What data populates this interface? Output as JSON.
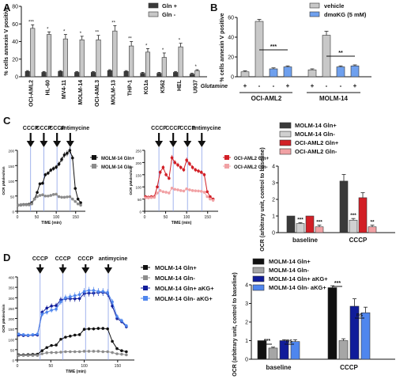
{
  "panels": [
    {
      "id": "A",
      "letter": "A"
    },
    {
      "id": "B",
      "letter": "B"
    },
    {
      "id": "C",
      "letter": "C"
    },
    {
      "id": "D",
      "letter": "D"
    }
  ],
  "colors": {
    "dark": "#3a3a3a",
    "light": "#c8c8c8",
    "black": "#111111",
    "gray": "#8c8c8c",
    "red": "#d21f26",
    "pink": "#f1a1a4",
    "navy": "#101c9a",
    "blue": "#4f86ee",
    "vline": "#8aa0e8"
  },
  "chart_data": [
    {
      "panel": "A",
      "type": "bar",
      "ylabel": "% cells annexin V positive",
      "ylim": [
        0,
        80
      ],
      "yticks": [
        0,
        20,
        40,
        60,
        80
      ],
      "categories": [
        "OCI-AML2",
        "HL-60",
        "MV4-11",
        "MOLM-14",
        "OCI-AML3",
        "MOLM-13",
        "THP-1",
        "KG1a",
        "K562",
        "HEL",
        "U937"
      ],
      "series": [
        {
          "name": "Gln +",
          "color": "#3a3a3a",
          "values": [
            6,
            5,
            6,
            5,
            5,
            7,
            6,
            4,
            4,
            5,
            3
          ],
          "errors": [
            1,
            1,
            1,
            1,
            1,
            1,
            1,
            1,
            1,
            1,
            1
          ]
        },
        {
          "name": "Gln -",
          "color": "#c8c8c8",
          "values": [
            55,
            48,
            43,
            42,
            42,
            52,
            35,
            28,
            22,
            34,
            7
          ],
          "errors": [
            4,
            3,
            5,
            4,
            5,
            6,
            5,
            4,
            5,
            4,
            1
          ]
        }
      ],
      "significance": [
        "***",
        "*",
        "*",
        "*",
        "**",
        "**",
        "**",
        "*",
        "*",
        "*",
        "*"
      ],
      "legend": [
        "Gln +",
        "Gln -"
      ]
    },
    {
      "panel": "B",
      "type": "bar",
      "ylabel": "% cells annexin V positive",
      "ylim": [
        0,
        60
      ],
      "yticks": [
        0,
        20,
        40,
        60
      ],
      "groups": [
        "OCI-AML2",
        "MOLM-14"
      ],
      "row_label": "Glutamine",
      "row_signs": [
        "+",
        "-",
        "-",
        "+",
        "+",
        "-",
        "-",
        "+"
      ],
      "series": [
        {
          "name": "vehicle",
          "color": "#c8c8c8",
          "values": [
            5,
            56,
            8,
            10,
            7,
            42,
            10,
            11
          ],
          "errors": [
            1,
            2,
            1,
            1,
            1,
            4,
            1,
            1
          ],
          "bars": [
            0,
            1,
            4,
            5
          ]
        },
        {
          "name": "dmαKG (5 mM)",
          "color": "#6fa0ee",
          "values": [
            5,
            56,
            8,
            10,
            7,
            42,
            10,
            11
          ],
          "errors": [
            1,
            2,
            1,
            1,
            1,
            4,
            1,
            1
          ],
          "bars": [
            2,
            3,
            6,
            7
          ]
        }
      ],
      "significance": [
        "***",
        "**"
      ],
      "legend": [
        "vehicle",
        "dmαKG (5 mM)"
      ]
    },
    {
      "panel": "C-left",
      "type": "line",
      "xlabel": "TIME (min)",
      "ylabel": "OCR pMoles/min",
      "xlim": [
        0,
        175
      ],
      "xticks": [
        0,
        50,
        100,
        150
      ],
      "ylim": [
        0,
        200
      ],
      "yticks": [
        0,
        50,
        100,
        150,
        200
      ],
      "injections": [
        "CCCP",
        "CCCP",
        "CCCP",
        "antimycine"
      ],
      "injection_times": [
        34,
        68,
        102,
        136
      ],
      "x": [
        2,
        9,
        16,
        23,
        30,
        37,
        44,
        51,
        58,
        65,
        72,
        79,
        86,
        93,
        100,
        107,
        114,
        121,
        128,
        135,
        142,
        149,
        156,
        163
      ],
      "series": [
        {
          "name": "MOLM-14 Gln+",
          "color": "#111111",
          "values": [
            20,
            21,
            22,
            22,
            23,
            28,
            40,
            62,
            90,
            92,
            120,
            125,
            135,
            140,
            145,
            155,
            170,
            185,
            190,
            200,
            175,
            75,
            40,
            28
          ]
        },
        {
          "name": "MOLM-14 Gln-",
          "color": "#8c8c8c",
          "values": [
            20,
            22,
            21,
            21,
            21,
            24,
            40,
            48,
            52,
            54,
            50,
            50,
            52,
            55,
            56,
            48,
            46,
            46,
            47,
            48,
            40,
            32,
            24,
            20
          ]
        }
      ]
    },
    {
      "panel": "C-middle",
      "type": "line",
      "xlabel": "TIME (min)",
      "ylabel": "OCR pMoles/min",
      "xlim": [
        0,
        175
      ],
      "xticks": [
        0,
        50,
        100,
        150
      ],
      "ylim": [
        0,
        250
      ],
      "yticks": [
        0,
        50,
        100,
        150,
        200,
        250
      ],
      "injections": [
        "CCCP",
        "CCCP",
        "CCCP",
        "antimycine"
      ],
      "injection_times": [
        34,
        68,
        102,
        136
      ],
      "x": [
        2,
        9,
        16,
        23,
        30,
        37,
        44,
        51,
        58,
        65,
        72,
        79,
        86,
        93,
        100,
        107,
        114,
        121,
        128,
        135,
        142,
        149,
        156,
        163
      ],
      "series": [
        {
          "name": "OCI-AML2 Gln+",
          "color": "#d21f26",
          "values": [
            60,
            58,
            60,
            60,
            100,
            160,
            180,
            150,
            135,
            220,
            200,
            190,
            180,
            170,
            210,
            195,
            180,
            170,
            165,
            160,
            150,
            80,
            60,
            50
          ]
        },
        {
          "name": "OCI-AML2 Gln-",
          "color": "#f1a1a4",
          "values": [
            55,
            55,
            56,
            57,
            75,
            85,
            80,
            78,
            75,
            95,
            90,
            88,
            85,
            83,
            92,
            88,
            85,
            84,
            83,
            82,
            78,
            60,
            50,
            45
          ]
        }
      ]
    },
    {
      "panel": "C-right",
      "type": "bar",
      "ylabel": "OCR (arbitrary unit, control to baseline)",
      "ylim": [
        0,
        4
      ],
      "yticks": [
        0,
        1,
        2,
        3,
        4
      ],
      "categories": [
        "baseline",
        "CCCP"
      ],
      "series": [
        {
          "name": "MOLM-14 Gln+",
          "color": "#3a3a3a",
          "values": [
            1.0,
            3.1
          ],
          "errors": [
            0,
            0.4
          ]
        },
        {
          "name": "MOLM-14 Gln-",
          "color": "#d0d0d0",
          "values": [
            0.55,
            0.75
          ],
          "errors": [
            0.05,
            0.1
          ]
        },
        {
          "name": "OCI-AML2 Gln+",
          "color": "#d21f26",
          "values": [
            1.0,
            2.1
          ],
          "errors": [
            0,
            0.3
          ]
        },
        {
          "name": "OCI-AML2 Gln-",
          "color": "#f1a1a4",
          "values": [
            0.35,
            0.35
          ],
          "errors": [
            0.1,
            0.1
          ]
        }
      ],
      "significance": [
        "***",
        "***",
        "***",
        "**"
      ],
      "legend": [
        "MOLM-14 Gln+",
        "MOLM-14 Gln-",
        "OCI-AML2 Gln+",
        "OCI-AML2 Gln-"
      ]
    },
    {
      "panel": "D-left",
      "type": "line",
      "xlabel": "TIME (min)",
      "ylabel": "OCR pMoles/min",
      "xlim": [
        0,
        175
      ],
      "xticks": [
        0,
        50,
        100,
        150
      ],
      "ylim": [
        0,
        400
      ],
      "yticks": [
        0,
        50,
        100,
        150,
        200,
        250,
        300,
        350,
        400
      ],
      "injections": [
        "CCCP",
        "CCCP",
        "CCCP",
        "antimycine"
      ],
      "injection_times": [
        34,
        68,
        102,
        136
      ],
      "x": [
        2,
        9,
        16,
        23,
        30,
        37,
        44,
        51,
        58,
        65,
        72,
        79,
        86,
        93,
        100,
        107,
        114,
        121,
        128,
        135,
        142,
        149,
        156,
        163
      ],
      "series": [
        {
          "name": "MOLM-14 Gln+",
          "color": "#111111",
          "values": [
            25,
            25,
            26,
            27,
            28,
            45,
            60,
            70,
            72,
            100,
            110,
            115,
            120,
            122,
            148,
            150,
            150,
            152,
            152,
            150,
            90,
            55,
            45,
            40
          ]
        },
        {
          "name": "MOLM-14 Gln-",
          "color": "#8c8c8c",
          "values": [
            22,
            22,
            22,
            22,
            22,
            30,
            35,
            36,
            36,
            38,
            40,
            40,
            40,
            40,
            42,
            42,
            42,
            42,
            40,
            40,
            36,
            30,
            28,
            25
          ]
        },
        {
          "name": "MOLM-14 Gln+ aKG+",
          "color": "#101c9a",
          "values": [
            120,
            118,
            118,
            120,
            120,
            230,
            250,
            260,
            262,
            290,
            295,
            295,
            295,
            296,
            320,
            322,
            322,
            325,
            325,
            320,
            260,
            200,
            185,
            160
          ]
        },
        {
          "name": "MOLM-14 Gln- aKG+",
          "color": "#4f86ee",
          "values": [
            125,
            122,
            120,
            122,
            125,
            220,
            230,
            240,
            245,
            280,
            300,
            305,
            310,
            315,
            330,
            335,
            335,
            330,
            330,
            325,
            280,
            210,
            190,
            165
          ]
        }
      ]
    },
    {
      "panel": "D-right",
      "type": "bar",
      "ylabel": "OCR (arbitrary unit, control to baseline)",
      "ylim": [
        0,
        4
      ],
      "yticks": [
        0,
        1,
        2,
        3,
        4
      ],
      "categories": [
        "baseline",
        "CCCP"
      ],
      "series": [
        {
          "name": "MOLM-14 Gln+",
          "color": "#111111",
          "values": [
            1.0,
            3.85
          ],
          "errors": [
            0,
            0.1
          ]
        },
        {
          "name": "MOLM-14 Gln-",
          "color": "#a6a6a6",
          "values": [
            0.6,
            1.0
          ],
          "errors": [
            0.05,
            0.1
          ]
        },
        {
          "name": "MOLM-14 Gln+ aKG+",
          "color": "#101c9a",
          "values": [
            1.0,
            2.85
          ],
          "errors": [
            0.05,
            0.4
          ]
        },
        {
          "name": "MOLM-14 Gln- aKG+",
          "color": "#4f86ee",
          "values": [
            0.95,
            2.5
          ],
          "errors": [
            0.1,
            0.3
          ]
        }
      ],
      "significance": [
        "***",
        "ns",
        "***",
        "ns"
      ],
      "legend": [
        "MOLM-14 Gln+",
        "MOLM-14 Gln-",
        "MOLM-14 Gln+ aKG+",
        "MOLM-14 Gln- aKG+"
      ]
    }
  ]
}
